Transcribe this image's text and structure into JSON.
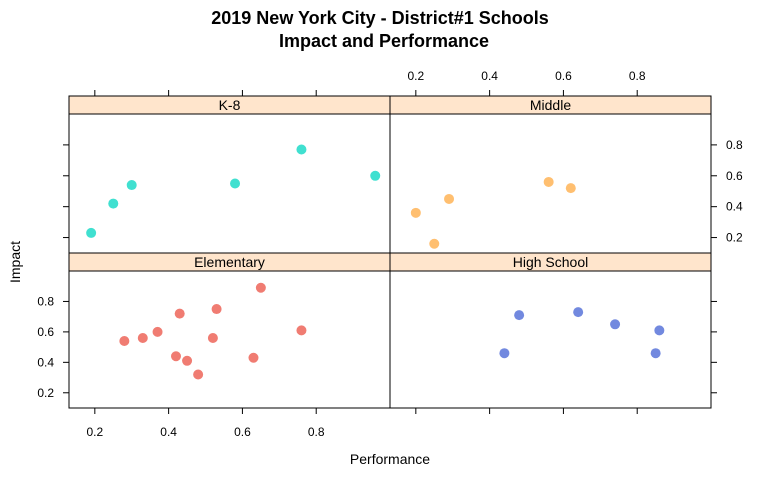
{
  "chart_data": {
    "type": "scatter",
    "title": "2019 New York City - District#1 Schools",
    "subtitle": "Impact and Performance",
    "xlabel": "Performance",
    "ylabel": "Impact",
    "xlim": [
      0.13,
      1.0
    ],
    "ylim": [
      0.1,
      1.0
    ],
    "x_ticks": [
      "0.2",
      "0.4",
      "0.6",
      "0.8"
    ],
    "y_ticks": [
      "0.2",
      "0.4",
      "0.6",
      "0.8"
    ],
    "grid": false,
    "layout": "2x2 panels",
    "panels": [
      {
        "name": "K-8",
        "color": "#40E0D0",
        "x": [
          0.19,
          0.25,
          0.3,
          0.58,
          0.76,
          0.96
        ],
        "y": [
          0.23,
          0.42,
          0.54,
          0.55,
          0.77,
          0.6
        ]
      },
      {
        "name": "Middle",
        "color": "#FFBF70",
        "x": [
          0.2,
          0.25,
          0.29,
          0.56,
          0.62
        ],
        "y": [
          0.36,
          0.16,
          0.45,
          0.56,
          0.52
        ]
      },
      {
        "name": "Elementary",
        "color": "#F07C72",
        "x": [
          0.28,
          0.33,
          0.37,
          0.42,
          0.43,
          0.45,
          0.48,
          0.52,
          0.53,
          0.63,
          0.65,
          0.76
        ],
        "y": [
          0.54,
          0.56,
          0.6,
          0.44,
          0.72,
          0.41,
          0.32,
          0.56,
          0.75,
          0.43,
          0.89,
          0.61
        ]
      },
      {
        "name": "High School",
        "color": "#7289DF",
        "x": [
          0.44,
          0.48,
          0.64,
          0.74,
          0.85,
          0.86
        ],
        "y": [
          0.46,
          0.71,
          0.73,
          0.65,
          0.46,
          0.61
        ]
      }
    ]
  }
}
